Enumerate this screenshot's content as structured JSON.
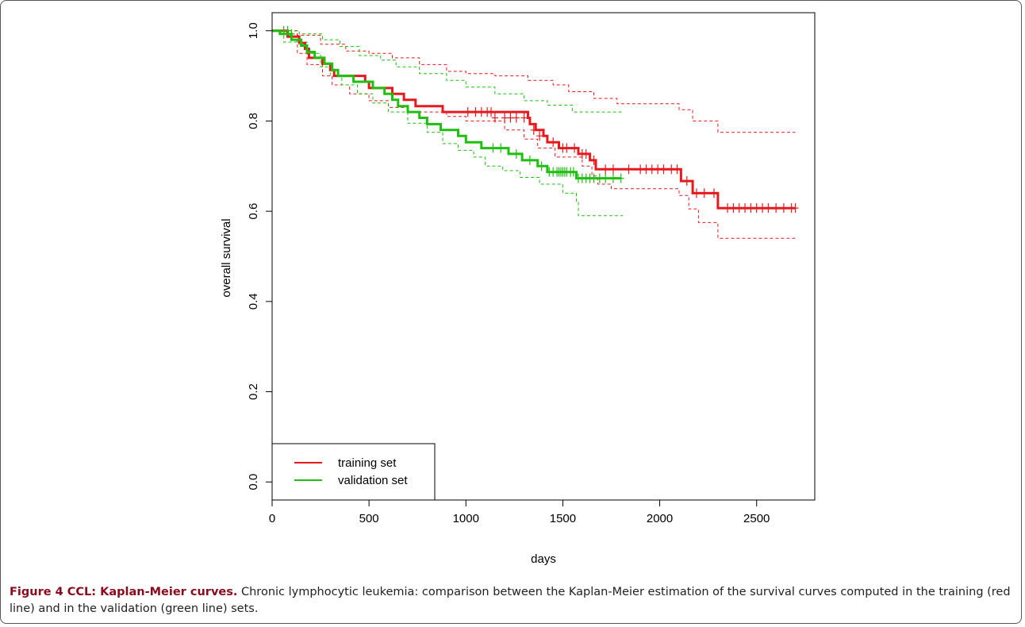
{
  "chart_data": {
    "type": "line",
    "title": "",
    "xlabel": "days",
    "ylabel": "overall survival",
    "xlim": [
      0,
      2800
    ],
    "ylim": [
      -0.04,
      1.04
    ],
    "xticks": [
      0,
      500,
      1000,
      1500,
      2000,
      2500
    ],
    "yticks": [
      0.0,
      0.2,
      0.4,
      0.6,
      0.8,
      1.0
    ],
    "grid": false,
    "legend_position": "bottom-left",
    "series": [
      {
        "name": "training set",
        "color": "#e8191d",
        "kind": "survival",
        "steps": [
          [
            0,
            1.0
          ],
          [
            80,
            0.987
          ],
          [
            140,
            0.973
          ],
          [
            170,
            0.96
          ],
          [
            190,
            0.94
          ],
          [
            260,
            0.927
          ],
          [
            300,
            0.913
          ],
          [
            320,
            0.9
          ],
          [
            480,
            0.887
          ],
          [
            500,
            0.873
          ],
          [
            620,
            0.86
          ],
          [
            680,
            0.847
          ],
          [
            740,
            0.833
          ],
          [
            880,
            0.82
          ],
          [
            1320,
            0.807
          ],
          [
            1330,
            0.793
          ],
          [
            1360,
            0.78
          ],
          [
            1400,
            0.767
          ],
          [
            1420,
            0.753
          ],
          [
            1480,
            0.74
          ],
          [
            1580,
            0.727
          ],
          [
            1640,
            0.713
          ],
          [
            1670,
            0.693
          ],
          [
            2110,
            0.667
          ],
          [
            2170,
            0.64
          ],
          [
            2300,
            0.607
          ],
          [
            2700,
            0.607
          ]
        ],
        "censored": [
          [
            1010,
            0.82
          ],
          [
            1050,
            0.82
          ],
          [
            1080,
            0.82
          ],
          [
            1110,
            0.82
          ],
          [
            1130,
            0.82
          ],
          [
            1150,
            0.807
          ],
          [
            1200,
            0.807
          ],
          [
            1230,
            0.807
          ],
          [
            1260,
            0.807
          ],
          [
            1300,
            0.807
          ],
          [
            1350,
            0.78
          ],
          [
            1380,
            0.767
          ],
          [
            1450,
            0.753
          ],
          [
            1500,
            0.74
          ],
          [
            1520,
            0.74
          ],
          [
            1560,
            0.74
          ],
          [
            1600,
            0.727
          ],
          [
            1620,
            0.727
          ],
          [
            1660,
            0.713
          ],
          [
            1720,
            0.693
          ],
          [
            1760,
            0.693
          ],
          [
            1840,
            0.693
          ],
          [
            1900,
            0.693
          ],
          [
            1930,
            0.693
          ],
          [
            1960,
            0.693
          ],
          [
            1990,
            0.693
          ],
          [
            2020,
            0.693
          ],
          [
            2060,
            0.693
          ],
          [
            2090,
            0.693
          ],
          [
            2140,
            0.667
          ],
          [
            2190,
            0.64
          ],
          [
            2230,
            0.64
          ],
          [
            2280,
            0.64
          ],
          [
            2350,
            0.607
          ],
          [
            2380,
            0.607
          ],
          [
            2410,
            0.607
          ],
          [
            2440,
            0.607
          ],
          [
            2470,
            0.607
          ],
          [
            2500,
            0.607
          ],
          [
            2530,
            0.607
          ],
          [
            2560,
            0.607
          ],
          [
            2600,
            0.607
          ],
          [
            2640,
            0.607
          ],
          [
            2680,
            0.607
          ],
          [
            2700,
            0.607
          ]
        ],
        "ci_upper": [
          [
            0,
            1.0
          ],
          [
            130,
            0.99
          ],
          [
            250,
            0.97
          ],
          [
            380,
            0.955
          ],
          [
            500,
            0.95
          ],
          [
            620,
            0.94
          ],
          [
            760,
            0.925
          ],
          [
            900,
            0.91
          ],
          [
            1000,
            0.905
          ],
          [
            1150,
            0.9
          ],
          [
            1320,
            0.89
          ],
          [
            1450,
            0.88
          ],
          [
            1530,
            0.865
          ],
          [
            1660,
            0.85
          ],
          [
            1780,
            0.838
          ],
          [
            2100,
            0.825
          ],
          [
            2170,
            0.8
          ],
          [
            2300,
            0.775
          ],
          [
            2700,
            0.775
          ]
        ],
        "ci_lower": [
          [
            0,
            1.0
          ],
          [
            130,
            0.95
          ],
          [
            180,
            0.925
          ],
          [
            260,
            0.9
          ],
          [
            310,
            0.88
          ],
          [
            400,
            0.86
          ],
          [
            500,
            0.845
          ],
          [
            600,
            0.83
          ],
          [
            700,
            0.82
          ],
          [
            900,
            0.81
          ],
          [
            1000,
            0.8
          ],
          [
            1200,
            0.78
          ],
          [
            1300,
            0.76
          ],
          [
            1370,
            0.74
          ],
          [
            1460,
            0.72
          ],
          [
            1600,
            0.7
          ],
          [
            1650,
            0.678
          ],
          [
            1680,
            0.66
          ],
          [
            1750,
            0.65
          ],
          [
            2100,
            0.635
          ],
          [
            2150,
            0.605
          ],
          [
            2200,
            0.575
          ],
          [
            2300,
            0.54
          ],
          [
            2700,
            0.54
          ]
        ]
      },
      {
        "name": "validation set",
        "color": "#1fbf10",
        "kind": "survival",
        "steps": [
          [
            0,
            1.0
          ],
          [
            40,
            0.993
          ],
          [
            100,
            0.98
          ],
          [
            150,
            0.967
          ],
          [
            180,
            0.953
          ],
          [
            220,
            0.94
          ],
          [
            270,
            0.927
          ],
          [
            310,
            0.913
          ],
          [
            340,
            0.9
          ],
          [
            420,
            0.887
          ],
          [
            520,
            0.873
          ],
          [
            580,
            0.86
          ],
          [
            620,
            0.847
          ],
          [
            650,
            0.833
          ],
          [
            700,
            0.82
          ],
          [
            760,
            0.807
          ],
          [
            800,
            0.793
          ],
          [
            870,
            0.78
          ],
          [
            960,
            0.767
          ],
          [
            1000,
            0.753
          ],
          [
            1080,
            0.74
          ],
          [
            1220,
            0.727
          ],
          [
            1290,
            0.713
          ],
          [
            1370,
            0.7
          ],
          [
            1420,
            0.687
          ],
          [
            1570,
            0.673
          ],
          [
            1800,
            0.673
          ]
        ],
        "censored": [
          [
            60,
            1.0
          ],
          [
            80,
            1.0
          ],
          [
            100,
            0.993
          ],
          [
            1140,
            0.74
          ],
          [
            1180,
            0.74
          ],
          [
            1260,
            0.727
          ],
          [
            1330,
            0.713
          ],
          [
            1390,
            0.7
          ],
          [
            1430,
            0.687
          ],
          [
            1450,
            0.687
          ],
          [
            1470,
            0.687
          ],
          [
            1480,
            0.687
          ],
          [
            1490,
            0.687
          ],
          [
            1500,
            0.687
          ],
          [
            1510,
            0.687
          ],
          [
            1520,
            0.687
          ],
          [
            1540,
            0.687
          ],
          [
            1555,
            0.687
          ],
          [
            1580,
            0.673
          ],
          [
            1600,
            0.673
          ],
          [
            1620,
            0.673
          ],
          [
            1640,
            0.673
          ],
          [
            1660,
            0.673
          ],
          [
            1690,
            0.673
          ],
          [
            1720,
            0.673
          ],
          [
            1760,
            0.673
          ],
          [
            1800,
            0.673
          ]
        ],
        "ci_upper": [
          [
            0,
            1.0
          ],
          [
            140,
            0.993
          ],
          [
            260,
            0.98
          ],
          [
            350,
            0.965
          ],
          [
            450,
            0.945
          ],
          [
            560,
            0.935
          ],
          [
            640,
            0.92
          ],
          [
            760,
            0.905
          ],
          [
            900,
            0.89
          ],
          [
            1000,
            0.875
          ],
          [
            1150,
            0.86
          ],
          [
            1300,
            0.845
          ],
          [
            1420,
            0.835
          ],
          [
            1550,
            0.82
          ],
          [
            1810,
            0.82
          ]
        ],
        "ci_lower": [
          [
            0,
            1.0
          ],
          [
            60,
            0.975
          ],
          [
            180,
            0.95
          ],
          [
            250,
            0.92
          ],
          [
            300,
            0.9
          ],
          [
            360,
            0.88
          ],
          [
            440,
            0.86
          ],
          [
            520,
            0.84
          ],
          [
            600,
            0.82
          ],
          [
            700,
            0.795
          ],
          [
            800,
            0.775
          ],
          [
            880,
            0.75
          ],
          [
            960,
            0.735
          ],
          [
            1040,
            0.72
          ],
          [
            1100,
            0.7
          ],
          [
            1190,
            0.69
          ],
          [
            1280,
            0.675
          ],
          [
            1380,
            0.66
          ],
          [
            1500,
            0.64
          ],
          [
            1570,
            0.62
          ],
          [
            1580,
            0.59
          ],
          [
            1810,
            0.59
          ]
        ]
      }
    ]
  },
  "caption": {
    "label": "Figure 4 CCL: Kaplan-Meier curves.",
    "text": "Chronic lymphocytic leukemia: comparison between the Kaplan-Meier estimation of the survival curves computed in the training (red line) and in the validation (green line) sets."
  }
}
